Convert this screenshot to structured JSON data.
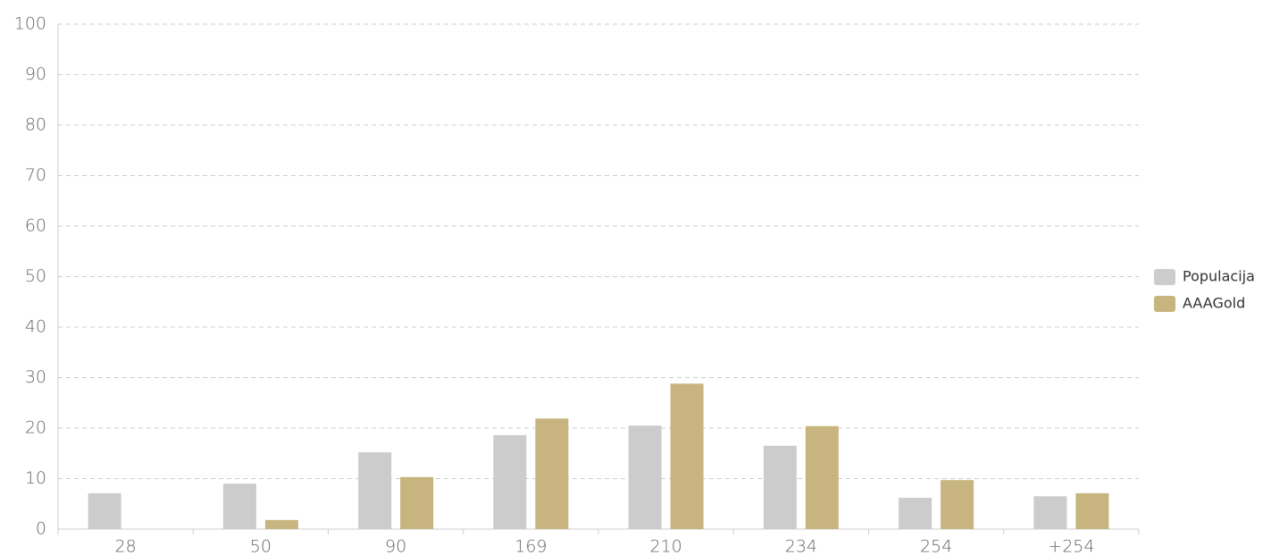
{
  "chart_data": {
    "type": "bar",
    "categories": [
      "28",
      "50",
      "90",
      "169",
      "210",
      "234",
      "254",
      "+254"
    ],
    "series": [
      {
        "name": "Populacija",
        "color": "#cccccc",
        "values": [
          7.1,
          9.0,
          15.2,
          18.6,
          20.5,
          16.5,
          6.2,
          6.5
        ]
      },
      {
        "name": "AAAGold",
        "color": "#c8b47e",
        "values": [
          0,
          1.8,
          10.3,
          21.9,
          28.8,
          20.4,
          9.7,
          7.1
        ]
      }
    ],
    "ylim": [
      0,
      100
    ],
    "yticks": [
      0,
      10,
      20,
      30,
      40,
      50,
      60,
      70,
      80,
      90,
      100
    ],
    "grid": true,
    "legend": "right"
  }
}
